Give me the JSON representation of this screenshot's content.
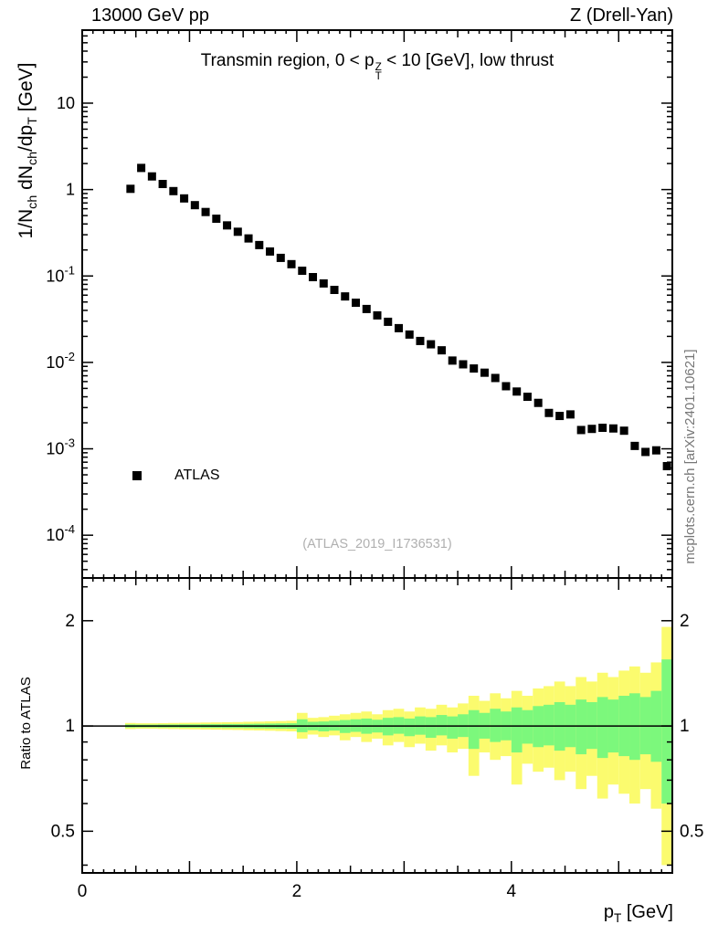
{
  "page": {
    "header_left": "13000 GeV pp",
    "header_right": "Z (Drell-Yan)",
    "watermark": "(ATLAS_2019_I1736531)",
    "side_note": "mcplots.cern.ch [arXiv:2401.10621]",
    "legend": {
      "label": "ATLAS",
      "marker": "filled-square",
      "marker_color": "#000000"
    }
  },
  "labels": {
    "title_parts": [
      {
        "t": "Transmin region, 0 < p"
      },
      {
        "stack": [
          "Z",
          "T"
        ]
      },
      {
        "t": " < 10 [GeV], low thrust"
      }
    ],
    "ylabel_parts": [
      {
        "t": "1/N"
      },
      {
        "t": "ch",
        "sub": true
      },
      {
        "t": " dN"
      },
      {
        "t": "ch",
        "sub": true
      },
      {
        "t": "/dp"
      },
      {
        "t": "T",
        "sub": true
      },
      {
        "t": " [GeV]"
      }
    ],
    "ratio_ylabel": "Ratio to ATLAS",
    "xlabel_parts": [
      {
        "t": "p"
      },
      {
        "t": "T",
        "sub": true
      },
      {
        "t": " [GeV]"
      }
    ]
  },
  "colors": {
    "band_outer": "#FBFB6E",
    "band_inner": "#7CF87C",
    "marker": "#000000",
    "watermark": "#b0b0b0",
    "side_note": "#777777"
  },
  "chart_data": {
    "type": "scatter",
    "title": "Transmin region, 0 < pT(Z) < 10 [GeV], low thrust",
    "xlabel": "pT [GeV]",
    "ylabel": "1/Nch dNch/dpT [GeV]",
    "legend_position": "left-middle",
    "grid": false,
    "xlim": [
      0,
      5.5
    ],
    "xticks_labeled": [
      {
        "v": 0,
        "t": "0"
      },
      {
        "v": 2,
        "t": "2"
      },
      {
        "v": 4,
        "t": "4"
      }
    ],
    "main_panel": {
      "yscale": "log",
      "ylim": [
        3.2e-05,
        70
      ],
      "yticks": [
        {
          "v": 10,
          "t": "10"
        },
        {
          "v": 1,
          "t": "1"
        },
        {
          "v": 0.1,
          "t": "10",
          "e": "-1"
        },
        {
          "v": 0.01,
          "t": "10",
          "e": "-2"
        },
        {
          "v": 0.001,
          "t": "10",
          "e": "-3"
        },
        {
          "v": 0.0001,
          "t": "10",
          "e": "-4"
        }
      ],
      "series": [
        {
          "name": "ATLAS",
          "marker": "square",
          "color": "#000000",
          "points": [
            [
              0.45,
              1.02
            ],
            [
              0.55,
              1.78
            ],
            [
              0.65,
              1.42
            ],
            [
              0.75,
              1.16
            ],
            [
              0.85,
              0.96
            ],
            [
              0.95,
              0.79
            ],
            [
              1.05,
              0.66
            ],
            [
              1.15,
              0.55
            ],
            [
              1.25,
              0.46
            ],
            [
              1.35,
              0.385
            ],
            [
              1.45,
              0.325
            ],
            [
              1.55,
              0.272
            ],
            [
              1.65,
              0.228
            ],
            [
              1.75,
              0.192
            ],
            [
              1.85,
              0.162
            ],
            [
              1.95,
              0.137
            ],
            [
              2.05,
              0.115
            ],
            [
              2.15,
              0.097
            ],
            [
              2.25,
              0.082
            ],
            [
              2.35,
              0.069
            ],
            [
              2.45,
              0.058
            ],
            [
              2.55,
              0.049
            ],
            [
              2.65,
              0.0415
            ],
            [
              2.75,
              0.035
            ],
            [
              2.85,
              0.0295
            ],
            [
              2.95,
              0.0249
            ],
            [
              3.05,
              0.021
            ],
            [
              3.15,
              0.0177
            ],
            [
              3.25,
              0.0162
            ],
            [
              3.35,
              0.0138
            ],
            [
              3.45,
              0.0105
            ],
            [
              3.55,
              0.0095
            ],
            [
              3.65,
              0.0085
            ],
            [
              3.75,
              0.0076
            ],
            [
              3.85,
              0.0066
            ],
            [
              3.95,
              0.0053
            ],
            [
              4.05,
              0.0046
            ],
            [
              4.15,
              0.004
            ],
            [
              4.25,
              0.0034
            ],
            [
              4.35,
              0.0026
            ],
            [
              4.45,
              0.0024
            ],
            [
              4.55,
              0.0025
            ],
            [
              4.65,
              0.00165
            ],
            [
              4.75,
              0.0017
            ],
            [
              4.85,
              0.00175
            ],
            [
              4.95,
              0.00172
            ],
            [
              5.05,
              0.00162
            ],
            [
              5.15,
              0.00108
            ],
            [
              5.25,
              0.00092
            ],
            [
              5.35,
              0.00096
            ],
            [
              5.45,
              0.00063
            ]
          ]
        }
      ]
    },
    "ratio_panel": {
      "yscale": "log",
      "ylim": [
        0.38,
        2.65
      ],
      "baseline": 1,
      "yticks": [
        {
          "v": 0.5,
          "t": "0.5"
        },
        {
          "v": 1,
          "t": "1"
        },
        {
          "v": 2,
          "t": "2"
        }
      ],
      "bands": {
        "bin_width": 0.1,
        "outer_name": "total-uncertainty-band",
        "inner_name": "stat-uncertainty-band",
        "entries": [
          [
            0.45,
            0.98,
            1.02,
            0.99,
            1.01
          ],
          [
            0.55,
            0.982,
            1.018,
            0.991,
            1.009
          ],
          [
            0.65,
            0.982,
            1.018,
            0.991,
            1.009
          ],
          [
            0.75,
            0.981,
            1.019,
            0.99,
            1.01
          ],
          [
            0.85,
            0.98,
            1.02,
            0.99,
            1.01
          ],
          [
            0.95,
            0.979,
            1.021,
            0.989,
            1.011
          ],
          [
            1.05,
            0.978,
            1.022,
            0.989,
            1.011
          ],
          [
            1.15,
            0.977,
            1.023,
            0.988,
            1.012
          ],
          [
            1.25,
            0.976,
            1.024,
            0.988,
            1.012
          ],
          [
            1.35,
            0.975,
            1.025,
            0.987,
            1.013
          ],
          [
            1.45,
            0.974,
            1.026,
            0.987,
            1.013
          ],
          [
            1.55,
            0.972,
            1.028,
            0.986,
            1.014
          ],
          [
            1.65,
            0.971,
            1.029,
            0.985,
            1.015
          ],
          [
            1.75,
            0.969,
            1.031,
            0.984,
            1.016
          ],
          [
            1.85,
            0.967,
            1.033,
            0.983,
            1.017
          ],
          [
            1.95,
            0.965,
            1.035,
            0.982,
            1.018
          ],
          [
            2.05,
            0.92,
            1.09,
            0.96,
            1.045
          ],
          [
            2.15,
            0.945,
            1.055,
            0.972,
            1.028
          ],
          [
            2.25,
            0.93,
            1.06,
            0.965,
            1.03
          ],
          [
            2.35,
            0.94,
            1.07,
            0.97,
            1.035
          ],
          [
            2.45,
            0.91,
            1.08,
            0.955,
            1.04
          ],
          [
            2.55,
            0.93,
            1.09,
            0.962,
            1.045
          ],
          [
            2.65,
            0.9,
            1.1,
            0.95,
            1.05
          ],
          [
            2.75,
            0.92,
            1.08,
            0.958,
            1.042
          ],
          [
            2.85,
            0.88,
            1.11,
            0.94,
            1.055
          ],
          [
            2.95,
            0.9,
            1.12,
            0.95,
            1.06
          ],
          [
            3.05,
            0.87,
            1.1,
            0.935,
            1.05
          ],
          [
            3.15,
            0.89,
            1.13,
            0.944,
            1.065
          ],
          [
            3.25,
            0.85,
            1.12,
            0.925,
            1.06
          ],
          [
            3.35,
            0.88,
            1.15,
            0.94,
            1.075
          ],
          [
            3.45,
            0.84,
            1.13,
            0.92,
            1.065
          ],
          [
            3.55,
            0.86,
            1.16,
            0.93,
            1.08
          ],
          [
            3.65,
            0.72,
            1.22,
            0.86,
            1.11
          ],
          [
            3.75,
            0.84,
            1.18,
            0.92,
            1.09
          ],
          [
            3.85,
            0.8,
            1.24,
            0.9,
            1.12
          ],
          [
            3.95,
            0.82,
            1.2,
            0.91,
            1.1
          ],
          [
            4.05,
            0.68,
            1.26,
            0.84,
            1.13
          ],
          [
            4.15,
            0.78,
            1.22,
            0.89,
            1.11
          ],
          [
            4.25,
            0.74,
            1.28,
            0.87,
            1.14
          ],
          [
            4.35,
            0.76,
            1.3,
            0.88,
            1.15
          ],
          [
            4.45,
            0.7,
            1.34,
            0.85,
            1.17
          ],
          [
            4.55,
            0.74,
            1.3,
            0.87,
            1.15
          ],
          [
            4.65,
            0.66,
            1.38,
            0.83,
            1.19
          ],
          [
            4.75,
            0.72,
            1.34,
            0.86,
            1.17
          ],
          [
            4.85,
            0.62,
            1.42,
            0.81,
            1.21
          ],
          [
            4.95,
            0.68,
            1.38,
            0.84,
            1.19
          ],
          [
            5.05,
            0.64,
            1.44,
            0.82,
            1.22
          ],
          [
            5.15,
            0.6,
            1.48,
            0.8,
            1.24
          ],
          [
            5.25,
            0.66,
            1.42,
            0.83,
            1.21
          ],
          [
            5.35,
            0.58,
            1.52,
            0.79,
            1.26
          ],
          [
            5.45,
            0.4,
            1.92,
            0.6,
            1.55
          ]
        ]
      }
    }
  }
}
